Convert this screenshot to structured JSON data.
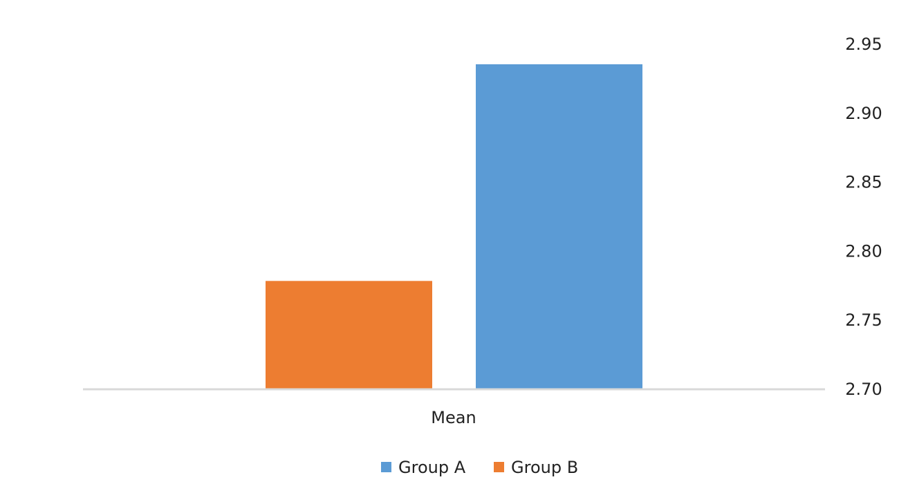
{
  "chart_data": {
    "type": "bar",
    "title": "",
    "xlabel": "",
    "ylabel": "",
    "categories": [
      "Mean"
    ],
    "series": [
      {
        "name": "Group A",
        "values": [
          2.935
        ],
        "color": "#5B9BD5"
      },
      {
        "name": "Group B",
        "values": [
          2.778
        ],
        "color": "#ED7D31"
      }
    ],
    "draw_order": [
      "Group B",
      "Group A"
    ],
    "ylim": [
      2.7,
      2.95
    ],
    "yticks": [
      "2.70",
      "2.75",
      "2.80",
      "2.85",
      "2.90",
      "2.95"
    ],
    "y_axis_position": "right",
    "grid": false,
    "legend": "bottom",
    "axis_color": "#D9D9D9"
  }
}
